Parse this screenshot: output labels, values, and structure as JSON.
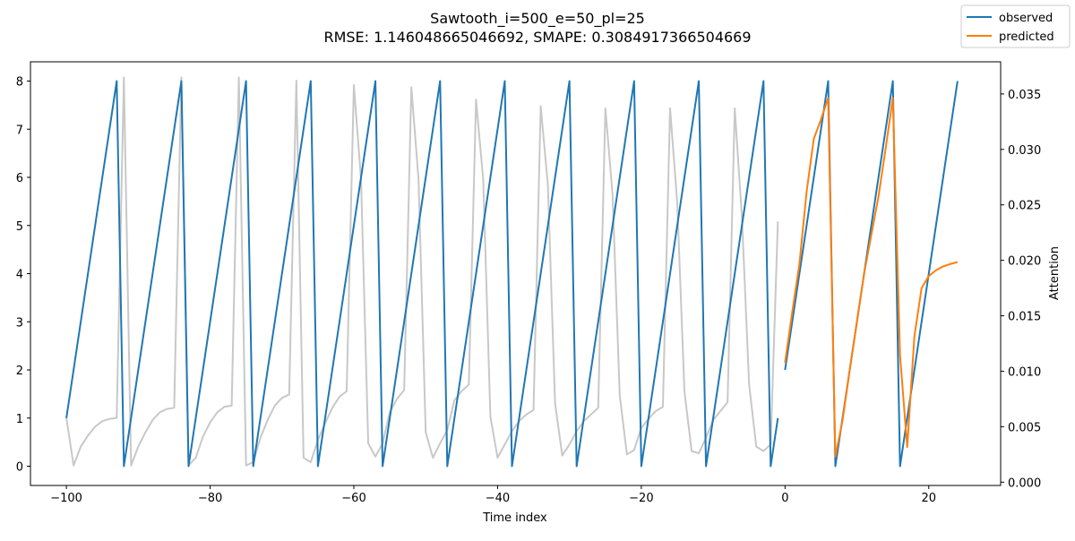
{
  "chart_data": {
    "type": "line",
    "title": "Sawtooth_i=500_e=50_pl=25",
    "subtitle": "RMSE: 1.146048665046692, SMAPE: 0.3084917366504669",
    "xlabel": "Time index",
    "ylabel": "",
    "y2label": "Attention",
    "xlim": [
      -105,
      30
    ],
    "ylim": [
      -0.4,
      8.4
    ],
    "y2lim": [
      -0.0003,
      0.0379
    ],
    "xticks": [
      -100,
      -80,
      -60,
      -40,
      -20,
      0,
      20
    ],
    "yticks": [
      0,
      1,
      2,
      3,
      4,
      5,
      6,
      7,
      8
    ],
    "y2ticks": [
      0.0,
      0.005,
      0.01,
      0.015,
      0.02,
      0.025,
      0.03,
      0.035
    ],
    "legend": {
      "placement": "top-right",
      "entries": [
        "observed",
        "predicted"
      ]
    },
    "colors": {
      "observed": "#1f77b4",
      "predicted": "#ff7f0e",
      "attention": "#c8c8c8"
    },
    "series": [
      {
        "name": "observed",
        "axis": "left",
        "x": [
          -100,
          -93,
          -92,
          -84,
          -83,
          -75,
          -74,
          -66,
          -65,
          -57,
          -56,
          -48,
          -47,
          -39,
          -38,
          -30,
          -29,
          -21,
          -20,
          -12,
          -11,
          -3,
          -2,
          -1
        ],
        "y": [
          1,
          8,
          0,
          8,
          0,
          8,
          0,
          8,
          0,
          8,
          0,
          8,
          0,
          8,
          0,
          8,
          0,
          8,
          0,
          8,
          0,
          8,
          0,
          1
        ]
      },
      {
        "name": "observed",
        "axis": "left",
        "x": [
          0,
          6,
          7,
          15,
          16,
          24
        ],
        "y": [
          2,
          8,
          0,
          8,
          0,
          8
        ]
      },
      {
        "name": "predicted",
        "axis": "left",
        "x": [
          0,
          1,
          2,
          3,
          4,
          5,
          6,
          7,
          8,
          9,
          10,
          11,
          12,
          13,
          14,
          15,
          16,
          17,
          18,
          19,
          20,
          21,
          22,
          23,
          24
        ],
        "y": [
          2.15,
          3.2,
          4.2,
          5.7,
          6.8,
          7.2,
          7.65,
          0.2,
          0.95,
          2.0,
          3.0,
          4.0,
          4.8,
          5.6,
          6.6,
          7.65,
          2.3,
          0.4,
          2.7,
          3.7,
          3.95,
          4.07,
          4.15,
          4.2,
          4.24
        ]
      },
      {
        "name": "attention",
        "axis": "right",
        "x": [
          -100,
          -99,
          -98,
          -97,
          -96,
          -95,
          -94,
          -93,
          -92,
          -91,
          -90,
          -89,
          -88,
          -87,
          -86,
          -85,
          -84,
          -83,
          -82,
          -81,
          -80,
          -79,
          -78,
          -77,
          -76,
          -75,
          -74,
          -73,
          -72,
          -71,
          -70,
          -69,
          -68,
          -67,
          -66,
          -65,
          -64,
          -63,
          -62,
          -61,
          -60,
          -59,
          -58,
          -57,
          -56,
          -55,
          -54,
          -53,
          -52,
          -51,
          -50,
          -49,
          -48,
          -47,
          -46,
          -45,
          -44,
          -43,
          -42,
          -41,
          -40,
          -39,
          -38,
          -37,
          -36,
          -35,
          -34,
          -33,
          -32,
          -31,
          -30,
          -29,
          -28,
          -27,
          -26,
          -25,
          -24,
          -23,
          -22,
          -21,
          -20,
          -19,
          -18,
          -17,
          -16,
          -15,
          -14,
          -13,
          -12,
          -11,
          -10,
          -9,
          -8,
          -7,
          -6,
          -5,
          -4,
          -3,
          -2,
          -1
        ],
        "y": [
          0.0058,
          0.0015,
          0.0032,
          0.0042,
          0.005,
          0.0055,
          0.0057,
          0.0058,
          0.0365,
          0.0015,
          0.0032,
          0.0045,
          0.0056,
          0.0063,
          0.0066,
          0.0067,
          0.0365,
          0.0015,
          0.0022,
          0.0041,
          0.0054,
          0.0063,
          0.0068,
          0.0069,
          0.0365,
          0.0015,
          0.0018,
          0.004,
          0.0056,
          0.0069,
          0.0076,
          0.0079,
          0.0362,
          0.0022,
          0.0018,
          0.0038,
          0.0053,
          0.0067,
          0.0077,
          0.0082,
          0.0358,
          0.0273,
          0.0035,
          0.0023,
          0.0035,
          0.0063,
          0.0075,
          0.0083,
          0.0356,
          0.0273,
          0.0045,
          0.0022,
          0.0035,
          0.0047,
          0.0074,
          0.0082,
          0.0088,
          0.0345,
          0.0273,
          0.0059,
          0.0022,
          0.0034,
          0.0046,
          0.0055,
          0.0061,
          0.0065,
          0.0339,
          0.0268,
          0.0071,
          0.0024,
          0.0034,
          0.0046,
          0.0055,
          0.0061,
          0.0067,
          0.0337,
          0.0259,
          0.0078,
          0.0025,
          0.0029,
          0.0049,
          0.0057,
          0.0064,
          0.0068,
          0.0337,
          0.0252,
          0.0082,
          0.0028,
          0.0026,
          0.004,
          0.0056,
          0.0064,
          0.0072,
          0.0337,
          0.0239,
          0.0088,
          0.0032,
          0.0028,
          0.0034,
          0.0235
        ]
      }
    ]
  }
}
